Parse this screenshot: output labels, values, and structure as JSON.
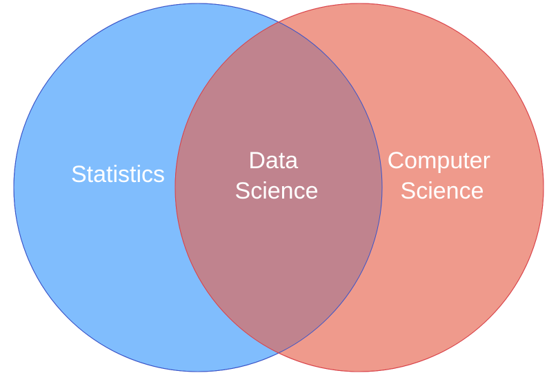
{
  "diagram": {
    "type": "venn",
    "sets": [
      {
        "id": "statistics",
        "label_lines": [
          "Statistics"
        ],
        "fill": "#80bdfd",
        "stroke": "#3b55c8"
      },
      {
        "id": "computer-science",
        "label_lines": [
          "Computer",
          "Science"
        ],
        "fill": "#ef9a8c",
        "stroke": "#d9434a"
      }
    ],
    "overlap": {
      "label_lines": [
        "Data",
        "Science"
      ],
      "fill": "#c0838e"
    }
  }
}
